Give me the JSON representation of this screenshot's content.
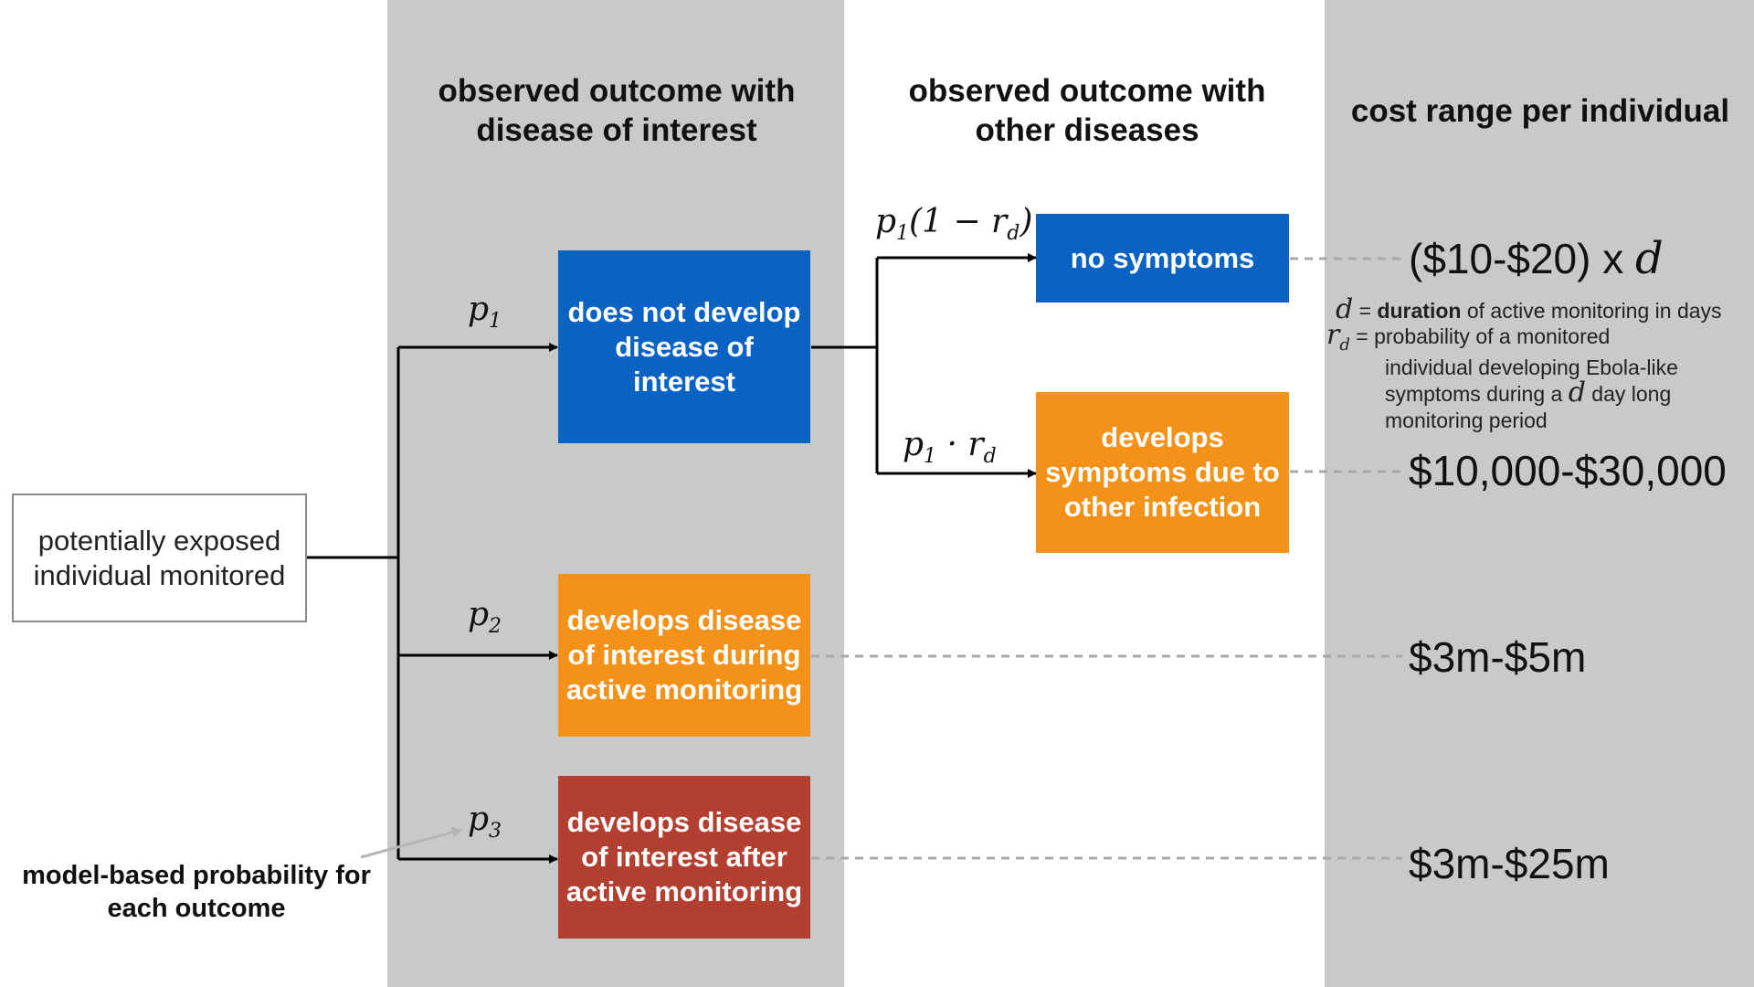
{
  "columns": {
    "disease_of_interest": "observed outcome with disease of interest",
    "other_diseases": "observed outcome with other diseases",
    "cost": "cost range per individual"
  },
  "start_node": "potentially exposed individual monitored",
  "outcomes": {
    "no_disease": "does not develop disease of interest",
    "during_monitoring": "develops disease of interest during active monitoring",
    "after_monitoring": "develops disease of interest after active monitoring",
    "no_symptoms": "no symptoms",
    "other_infection": "develops symptoms due to other infection"
  },
  "probabilities": {
    "p1": {
      "base": "p",
      "sub": "1"
    },
    "p2": {
      "base": "p",
      "sub": "2"
    },
    "p3": {
      "base": "p",
      "sub": "3"
    },
    "no_symptoms": {
      "pre": "p",
      "pre_sub": "1",
      "mid": "(1 − r",
      "mid_sub": "d",
      "post": ")"
    },
    "other_infection": {
      "pre": "p",
      "pre_sub": "1",
      "mid": " · r",
      "mid_sub": "d"
    }
  },
  "costs": {
    "no_symptoms": {
      "text": "($10-$20) x ",
      "var": "d"
    },
    "other_infection": "$10,000-$30,000",
    "during_monitoring": "$3m-$5m",
    "after_monitoring": "$3m-$25m"
  },
  "legend": {
    "d_symbol": "d",
    "d_equals": " = ",
    "d_bold": "duration",
    "d_rest": " of active monitoring in days",
    "rd_symbol": "r",
    "rd_sub": "d",
    "rd_line1": " = probability of a monitored",
    "rd_line2": "individual developing Ebola-like",
    "rd_line3a": "symptoms during a ",
    "rd_line3_var": "d",
    "rd_line3b": " day long",
    "rd_line4": "monitoring period"
  },
  "note": "model-based probability for each outcome",
  "colors": {
    "band": "#c8c9ca",
    "blue": "#0a63c2",
    "orange": "#f39119",
    "red": "#b33f31"
  }
}
